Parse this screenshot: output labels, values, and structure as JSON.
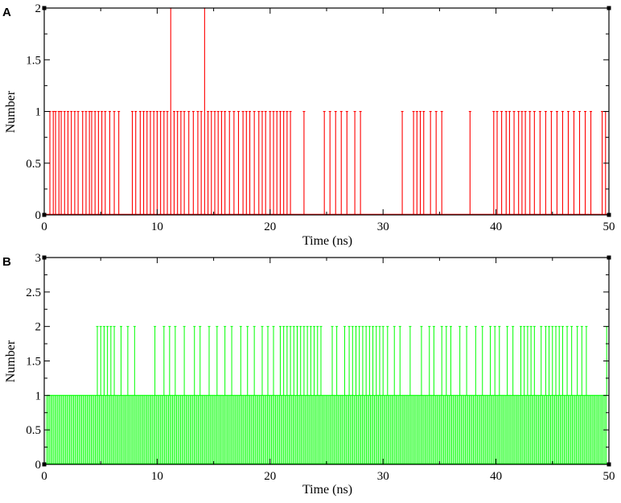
{
  "chart_data": [
    {
      "type": "line",
      "panel_label": "A",
      "xlabel": "Time (ns)",
      "ylabel": "Number",
      "xlim": [
        0,
        50
      ],
      "ylim": [
        0,
        2
      ],
      "xticks": [
        "0",
        "10",
        "20",
        "30",
        "40",
        "50"
      ],
      "yticks": [
        "0",
        "0.5",
        "1",
        "1.5",
        "2"
      ],
      "grid": false,
      "series": [
        {
          "color": "#ff0000",
          "events": [
            {
              "t": 0.5,
              "v": 1
            },
            {
              "t": 0.8,
              "v": 1
            },
            {
              "t": 1.0,
              "v": 1
            },
            {
              "t": 1.3,
              "v": 1
            },
            {
              "t": 1.5,
              "v": 1
            },
            {
              "t": 1.8,
              "v": 1
            },
            {
              "t": 2.1,
              "v": 1
            },
            {
              "t": 2.4,
              "v": 1
            },
            {
              "t": 2.7,
              "v": 1
            },
            {
              "t": 3.0,
              "v": 1
            },
            {
              "t": 3.4,
              "v": 1
            },
            {
              "t": 3.7,
              "v": 1
            },
            {
              "t": 4.0,
              "v": 1
            },
            {
              "t": 4.2,
              "v": 1
            },
            {
              "t": 4.5,
              "v": 1
            },
            {
              "t": 4.8,
              "v": 1
            },
            {
              "t": 5.1,
              "v": 1
            },
            {
              "t": 5.4,
              "v": 1
            },
            {
              "t": 5.8,
              "v": 1
            },
            {
              "t": 6.2,
              "v": 1
            },
            {
              "t": 6.6,
              "v": 1
            },
            {
              "t": 7.8,
              "v": 1
            },
            {
              "t": 8.1,
              "v": 1
            },
            {
              "t": 8.5,
              "v": 1
            },
            {
              "t": 8.8,
              "v": 1
            },
            {
              "t": 9.1,
              "v": 1
            },
            {
              "t": 9.4,
              "v": 1
            },
            {
              "t": 9.7,
              "v": 1
            },
            {
              "t": 10.0,
              "v": 1
            },
            {
              "t": 10.3,
              "v": 1
            },
            {
              "t": 10.6,
              "v": 1
            },
            {
              "t": 10.9,
              "v": 1
            },
            {
              "t": 11.2,
              "v": 2
            },
            {
              "t": 11.5,
              "v": 1
            },
            {
              "t": 11.8,
              "v": 1
            },
            {
              "t": 12.1,
              "v": 1
            },
            {
              "t": 12.4,
              "v": 1
            },
            {
              "t": 12.8,
              "v": 1
            },
            {
              "t": 13.2,
              "v": 1
            },
            {
              "t": 13.6,
              "v": 1
            },
            {
              "t": 13.9,
              "v": 1
            },
            {
              "t": 14.2,
              "v": 2
            },
            {
              "t": 14.5,
              "v": 1
            },
            {
              "t": 14.8,
              "v": 1
            },
            {
              "t": 15.1,
              "v": 1
            },
            {
              "t": 15.4,
              "v": 1
            },
            {
              "t": 15.7,
              "v": 1
            },
            {
              "t": 16.0,
              "v": 1
            },
            {
              "t": 16.4,
              "v": 1
            },
            {
              "t": 16.8,
              "v": 1
            },
            {
              "t": 17.2,
              "v": 1
            },
            {
              "t": 17.6,
              "v": 1
            },
            {
              "t": 17.9,
              "v": 1
            },
            {
              "t": 18.2,
              "v": 1
            },
            {
              "t": 18.6,
              "v": 1
            },
            {
              "t": 19.0,
              "v": 1
            },
            {
              "t": 19.3,
              "v": 1
            },
            {
              "t": 19.6,
              "v": 1
            },
            {
              "t": 20.0,
              "v": 1
            },
            {
              "t": 20.3,
              "v": 1
            },
            {
              "t": 20.6,
              "v": 1
            },
            {
              "t": 20.9,
              "v": 1
            },
            {
              "t": 21.2,
              "v": 1
            },
            {
              "t": 21.5,
              "v": 1
            },
            {
              "t": 21.8,
              "v": 1
            },
            {
              "t": 23.0,
              "v": 1
            },
            {
              "t": 24.8,
              "v": 1
            },
            {
              "t": 25.3,
              "v": 1
            },
            {
              "t": 25.8,
              "v": 1
            },
            {
              "t": 26.3,
              "v": 1
            },
            {
              "t": 26.8,
              "v": 1
            },
            {
              "t": 27.5,
              "v": 1
            },
            {
              "t": 28.0,
              "v": 1
            },
            {
              "t": 31.7,
              "v": 1
            },
            {
              "t": 32.7,
              "v": 1
            },
            {
              "t": 33.0,
              "v": 1
            },
            {
              "t": 33.3,
              "v": 1
            },
            {
              "t": 33.6,
              "v": 1
            },
            {
              "t": 34.2,
              "v": 1
            },
            {
              "t": 34.7,
              "v": 1
            },
            {
              "t": 35.2,
              "v": 1
            },
            {
              "t": 37.7,
              "v": 1
            },
            {
              "t": 39.8,
              "v": 1
            },
            {
              "t": 40.1,
              "v": 1
            },
            {
              "t": 40.5,
              "v": 1
            },
            {
              "t": 40.9,
              "v": 1
            },
            {
              "t": 41.2,
              "v": 1
            },
            {
              "t": 41.6,
              "v": 1
            },
            {
              "t": 42.0,
              "v": 1
            },
            {
              "t": 42.3,
              "v": 1
            },
            {
              "t": 42.6,
              "v": 1
            },
            {
              "t": 43.0,
              "v": 1
            },
            {
              "t": 43.4,
              "v": 1
            },
            {
              "t": 43.9,
              "v": 1
            },
            {
              "t": 44.4,
              "v": 1
            },
            {
              "t": 44.9,
              "v": 1
            },
            {
              "t": 45.4,
              "v": 1
            },
            {
              "t": 45.9,
              "v": 1
            },
            {
              "t": 46.4,
              "v": 1
            },
            {
              "t": 46.9,
              "v": 1
            },
            {
              "t": 47.4,
              "v": 1
            },
            {
              "t": 47.9,
              "v": 1
            },
            {
              "t": 48.4,
              "v": 1
            },
            {
              "t": 49.4,
              "v": 1
            },
            {
              "t": 49.7,
              "v": 1
            }
          ]
        }
      ]
    },
    {
      "type": "line",
      "panel_label": "B",
      "xlabel": "Time (ns)",
      "ylabel": "Number",
      "xlim": [
        0,
        50
      ],
      "ylim": [
        0,
        3
      ],
      "xticks": [
        "0",
        "10",
        "20",
        "30",
        "40",
        "50"
      ],
      "yticks": [
        "0",
        "0.5",
        "1",
        "1.5",
        "2",
        "2.5",
        "3"
      ],
      "grid": false,
      "series": [
        {
          "color": "#00ff00",
          "dense_one_ranges": [
            [
              0.2,
              49.8
            ]
          ],
          "two_events": [
            4.7,
            5.0,
            5.3,
            5.6,
            5.9,
            6.2,
            6.8,
            7.4,
            8.0,
            9.8,
            10.6,
            11.1,
            11.6,
            12.4,
            13.3,
            13.8,
            14.6,
            15.3,
            16.0,
            16.6,
            17.4,
            18.0,
            18.6,
            19.3,
            19.8,
            20.3,
            20.9,
            21.2,
            21.5,
            21.8,
            22.1,
            22.4,
            22.7,
            23.0,
            23.3,
            23.6,
            23.9,
            24.2,
            24.5,
            25.5,
            25.9,
            26.6,
            27.0,
            27.3,
            27.6,
            27.9,
            28.2,
            28.5,
            28.8,
            29.1,
            29.4,
            29.7,
            30.0,
            30.4,
            31.0,
            31.5,
            32.4,
            33.4,
            34.1,
            34.5,
            35.2,
            35.6,
            36.0,
            36.8,
            37.4,
            38.2,
            38.8,
            39.5,
            39.9,
            40.3,
            41.0,
            41.5,
            42.2,
            42.5,
            42.8,
            43.1,
            43.4,
            44.0,
            44.4,
            44.7,
            45.0,
            45.3,
            45.6,
            45.9,
            46.3,
            46.7,
            47.2,
            47.6,
            48.0,
            49.8
          ]
        }
      ]
    }
  ]
}
